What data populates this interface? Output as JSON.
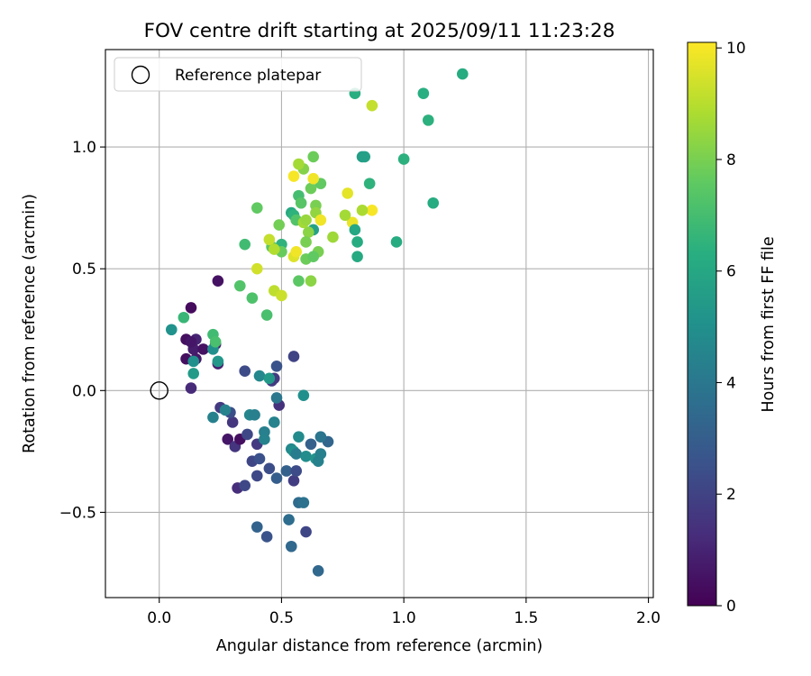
{
  "chart_data": {
    "type": "scatter",
    "title": "FOV centre drift starting at 2025/09/11 11:23:28",
    "xlabel": "Angular distance from reference (arcmin)",
    "ylabel": "Rotation from reference (arcmin)",
    "xlim": [
      -0.22,
      2.02
    ],
    "ylim": [
      -0.85,
      1.4
    ],
    "xticks": [
      0.0,
      0.5,
      1.0,
      1.5,
      2.0
    ],
    "xtick_labels": [
      "0.0",
      "0.5",
      "1.0",
      "1.5",
      "2.0"
    ],
    "yticks": [
      -0.5,
      0.0,
      0.5,
      1.0
    ],
    "ytick_labels": [
      "−0.5",
      "0.0",
      "0.5",
      "1.0"
    ],
    "grid": true,
    "legend": {
      "placement": "upper-left",
      "entries": [
        "Reference platepar"
      ]
    },
    "reference_point": {
      "x": 0.0,
      "y": 0.0,
      "label": "Reference platepar"
    },
    "colorbar": {
      "label": "Hours from first FF file",
      "range": [
        0,
        10.1
      ],
      "ticks": [
        0,
        2,
        4,
        6,
        8,
        10
      ],
      "tick_labels": [
        "0",
        "2",
        "4",
        "6",
        "8",
        "10"
      ],
      "colormap": "viridis"
    },
    "points": [
      {
        "x": 0.13,
        "y": 0.34,
        "h": 0.3
      },
      {
        "x": 0.24,
        "y": 0.45,
        "h": 0.5
      },
      {
        "x": 0.11,
        "y": 0.21,
        "h": 0.4
      },
      {
        "x": 0.15,
        "y": 0.21,
        "h": 1.0
      },
      {
        "x": 0.14,
        "y": 0.17,
        "h": 0.8
      },
      {
        "x": 0.18,
        "y": 0.17,
        "h": 0.5
      },
      {
        "x": 0.13,
        "y": 0.2,
        "h": 0.6
      },
      {
        "x": 0.11,
        "y": 0.13,
        "h": 0.4
      },
      {
        "x": 0.15,
        "y": 0.13,
        "h": 0.7
      },
      {
        "x": 0.24,
        "y": 0.11,
        "h": 0.9
      },
      {
        "x": 0.13,
        "y": 0.01,
        "h": 1.2
      },
      {
        "x": 0.23,
        "y": 0.19,
        "h": 0.9
      },
      {
        "x": 0.28,
        "y": -0.2,
        "h": 0.6
      },
      {
        "x": 0.31,
        "y": -0.23,
        "h": 1.5
      },
      {
        "x": 0.33,
        "y": -0.2,
        "h": 0.4
      },
      {
        "x": 0.32,
        "y": -0.4,
        "h": 1.3
      },
      {
        "x": 0.35,
        "y": 0.08,
        "h": 2.3
      },
      {
        "x": 0.36,
        "y": -0.18,
        "h": 2.2
      },
      {
        "x": 0.38,
        "y": -0.29,
        "h": 2.1
      },
      {
        "x": 0.35,
        "y": -0.39,
        "h": 2.2
      },
      {
        "x": 0.3,
        "y": -0.13,
        "h": 1.6
      },
      {
        "x": 0.25,
        "y": -0.07,
        "h": 1.7
      },
      {
        "x": 0.29,
        "y": -0.09,
        "h": 2.4
      },
      {
        "x": 0.4,
        "y": -0.22,
        "h": 1.7
      },
      {
        "x": 0.41,
        "y": -0.28,
        "h": 2.5
      },
      {
        "x": 0.45,
        "y": -0.32,
        "h": 2.4
      },
      {
        "x": 0.4,
        "y": -0.35,
        "h": 2.2
      },
      {
        "x": 0.46,
        "y": 0.04,
        "h": 1.8
      },
      {
        "x": 0.47,
        "y": 0.05,
        "h": 1.7
      },
      {
        "x": 0.49,
        "y": -0.06,
        "h": 1.4
      },
      {
        "x": 0.48,
        "y": 0.1,
        "h": 2.6
      },
      {
        "x": 0.55,
        "y": 0.14,
        "h": 2.0
      },
      {
        "x": 0.48,
        "y": -0.36,
        "h": 3.0
      },
      {
        "x": 0.52,
        "y": -0.33,
        "h": 3.1
      },
      {
        "x": 0.55,
        "y": -0.37,
        "h": 1.8
      },
      {
        "x": 0.56,
        "y": -0.33,
        "h": 2.3
      },
      {
        "x": 0.62,
        "y": -0.22,
        "h": 3.1
      },
      {
        "x": 0.69,
        "y": -0.21,
        "h": 3.3
      },
      {
        "x": 0.6,
        "y": -0.58,
        "h": 2.1
      },
      {
        "x": 0.44,
        "y": -0.6,
        "h": 2.6
      },
      {
        "x": 0.4,
        "y": -0.56,
        "h": 3.2
      },
      {
        "x": 0.65,
        "y": -0.74,
        "h": 3.4
      },
      {
        "x": 0.53,
        "y": -0.53,
        "h": 3.6
      },
      {
        "x": 0.54,
        "y": -0.64,
        "h": 3.4
      },
      {
        "x": 0.57,
        "y": -0.46,
        "h": 3.5
      },
      {
        "x": 0.59,
        "y": -0.46,
        "h": 3.8
      },
      {
        "x": 0.47,
        "y": -0.13,
        "h": 4.5
      },
      {
        "x": 0.48,
        "y": -0.03,
        "h": 4.0
      },
      {
        "x": 0.43,
        "y": -0.17,
        "h": 4.3
      },
      {
        "x": 0.43,
        "y": -0.2,
        "h": 4.5
      },
      {
        "x": 0.37,
        "y": -0.1,
        "h": 4.6
      },
      {
        "x": 0.39,
        "y": -0.1,
        "h": 4.3
      },
      {
        "x": 0.27,
        "y": -0.08,
        "h": 4.5
      },
      {
        "x": 0.22,
        "y": -0.11,
        "h": 4.4
      },
      {
        "x": 0.41,
        "y": 0.06,
        "h": 4.7
      },
      {
        "x": 0.45,
        "y": 0.05,
        "h": 5.4
      },
      {
        "x": 0.54,
        "y": -0.24,
        "h": 4.7
      },
      {
        "x": 0.55,
        "y": -0.25,
        "h": 5.0
      },
      {
        "x": 0.56,
        "y": -0.26,
        "h": 4.2
      },
      {
        "x": 0.57,
        "y": -0.19,
        "h": 4.8
      },
      {
        "x": 0.6,
        "y": -0.27,
        "h": 4.9
      },
      {
        "x": 0.59,
        "y": -0.02,
        "h": 5.0
      },
      {
        "x": 0.64,
        "y": -0.28,
        "h": 5.2
      },
      {
        "x": 0.66,
        "y": -0.26,
        "h": 4.3
      },
      {
        "x": 0.65,
        "y": -0.29,
        "h": 4.4
      },
      {
        "x": 0.66,
        "y": -0.19,
        "h": 3.9
      },
      {
        "x": 0.05,
        "y": 0.25,
        "h": 5.1
      },
      {
        "x": 0.14,
        "y": 0.12,
        "h": 5.0
      },
      {
        "x": 0.14,
        "y": 0.07,
        "h": 5.5
      },
      {
        "x": 0.24,
        "y": 0.12,
        "h": 5.3
      },
      {
        "x": 0.22,
        "y": 0.17,
        "h": 5.0
      },
      {
        "x": 0.1,
        "y": 0.3,
        "h": 6.7
      },
      {
        "x": 0.22,
        "y": 0.23,
        "h": 6.9
      },
      {
        "x": 0.23,
        "y": 0.2,
        "h": 7.1
      },
      {
        "x": 0.33,
        "y": 0.43,
        "h": 7.3
      },
      {
        "x": 0.38,
        "y": 0.38,
        "h": 7.2
      },
      {
        "x": 0.35,
        "y": 0.6,
        "h": 6.9
      },
      {
        "x": 0.4,
        "y": 0.75,
        "h": 7.6
      },
      {
        "x": 0.44,
        "y": 0.31,
        "h": 7.1
      },
      {
        "x": 0.46,
        "y": 0.59,
        "h": 7.5
      },
      {
        "x": 0.5,
        "y": 0.6,
        "h": 6.5
      },
      {
        "x": 0.5,
        "y": 0.57,
        "h": 7.7
      },
      {
        "x": 0.49,
        "y": 0.68,
        "h": 7.9
      },
      {
        "x": 0.54,
        "y": 0.73,
        "h": 6.1
      },
      {
        "x": 0.55,
        "y": 0.72,
        "h": 6.5
      },
      {
        "x": 0.56,
        "y": 0.7,
        "h": 7.3
      },
      {
        "x": 0.57,
        "y": 0.8,
        "h": 7.0
      },
      {
        "x": 0.58,
        "y": 0.77,
        "h": 7.4
      },
      {
        "x": 0.57,
        "y": 0.45,
        "h": 7.5
      },
      {
        "x": 0.6,
        "y": 0.54,
        "h": 7.8
      },
      {
        "x": 0.59,
        "y": 0.91,
        "h": 8.2
      },
      {
        "x": 0.62,
        "y": 0.83,
        "h": 7.8
      },
      {
        "x": 0.63,
        "y": 0.96,
        "h": 7.8
      },
      {
        "x": 0.64,
        "y": 0.76,
        "h": 8.0
      },
      {
        "x": 0.64,
        "y": 0.73,
        "h": 8.4
      },
      {
        "x": 0.66,
        "y": 0.85,
        "h": 7.6
      },
      {
        "x": 0.63,
        "y": 0.66,
        "h": 5.8
      },
      {
        "x": 0.61,
        "y": 0.65,
        "h": 8.3
      },
      {
        "x": 0.62,
        "y": 0.45,
        "h": 8.3
      },
      {
        "x": 0.65,
        "y": 0.57,
        "h": 8.0
      },
      {
        "x": 0.63,
        "y": 0.55,
        "h": 7.6
      },
      {
        "x": 0.71,
        "y": 0.63,
        "h": 8.6
      },
      {
        "x": 0.59,
        "y": 0.69,
        "h": 8.7
      },
      {
        "x": 0.6,
        "y": 0.7,
        "h": 8.5
      },
      {
        "x": 0.6,
        "y": 0.61,
        "h": 8.0
      },
      {
        "x": 0.66,
        "y": 0.7,
        "h": 9.9
      },
      {
        "x": 0.63,
        "y": 0.87,
        "h": 9.9
      },
      {
        "x": 0.55,
        "y": 0.88,
        "h": 10.0
      },
      {
        "x": 0.57,
        "y": 0.93,
        "h": 8.7
      },
      {
        "x": 0.55,
        "y": 0.55,
        "h": 9.6
      },
      {
        "x": 0.56,
        "y": 0.57,
        "h": 9.9
      },
      {
        "x": 0.45,
        "y": 0.62,
        "h": 9.2
      },
      {
        "x": 0.47,
        "y": 0.58,
        "h": 8.9
      },
      {
        "x": 0.4,
        "y": 0.5,
        "h": 9.4
      },
      {
        "x": 0.47,
        "y": 0.41,
        "h": 9.1
      },
      {
        "x": 0.5,
        "y": 0.39,
        "h": 9.3
      },
      {
        "x": 0.77,
        "y": 0.81,
        "h": 9.7
      },
      {
        "x": 0.79,
        "y": 0.69,
        "h": 9.8
      },
      {
        "x": 0.87,
        "y": 0.74,
        "h": 10.0
      },
      {
        "x": 0.76,
        "y": 0.72,
        "h": 8.7
      },
      {
        "x": 0.83,
        "y": 0.74,
        "h": 8.8
      },
      {
        "x": 0.8,
        "y": 0.66,
        "h": 6.0
      },
      {
        "x": 0.81,
        "y": 0.61,
        "h": 6.2
      },
      {
        "x": 0.81,
        "y": 0.55,
        "h": 6.1
      },
      {
        "x": 0.86,
        "y": 0.85,
        "h": 6.5
      },
      {
        "x": 0.83,
        "y": 0.96,
        "h": 5.6
      },
      {
        "x": 0.84,
        "y": 0.96,
        "h": 5.7
      },
      {
        "x": 0.97,
        "y": 0.61,
        "h": 6.2
      },
      {
        "x": 1.0,
        "y": 0.95,
        "h": 6.4
      },
      {
        "x": 1.12,
        "y": 0.77,
        "h": 6.2
      },
      {
        "x": 1.1,
        "y": 1.11,
        "h": 6.4
      },
      {
        "x": 1.08,
        "y": 1.22,
        "h": 6.3
      },
      {
        "x": 1.24,
        "y": 1.3,
        "h": 6.2
      },
      {
        "x": 0.8,
        "y": 1.22,
        "h": 6.3
      },
      {
        "x": 0.87,
        "y": 1.17,
        "h": 9.2
      }
    ]
  }
}
